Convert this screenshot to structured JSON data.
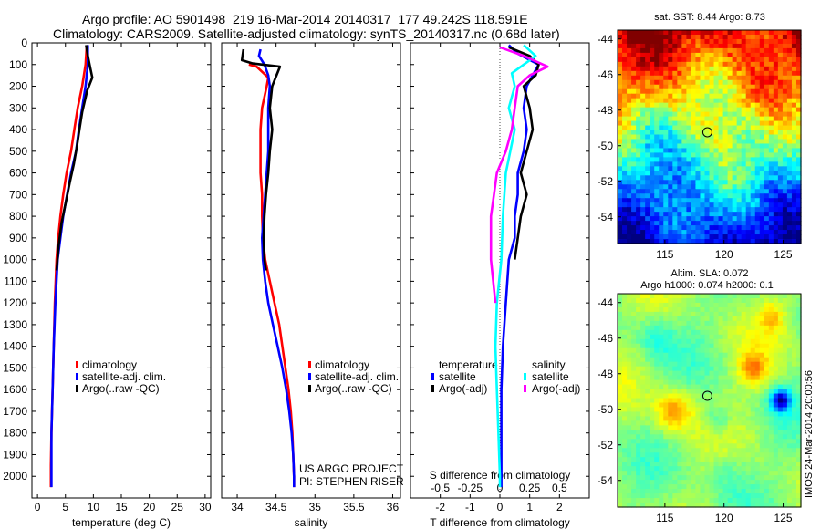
{
  "header": {
    "line1": "Argo profile: AO 5901498_219 16-Mar-2014 20140317_177 49.242S 118.591E",
    "line2": "Climatology: CARS2009. Satellite-adjusted climatology: synTS_20140317.nc (0.68d later)"
  },
  "colors": {
    "climatology": "#ff0000",
    "satellite": "#0000ff",
    "argo": "#000000",
    "satellite_salinity": "#00ffff",
    "argo_salinity": "#ff00ff"
  },
  "chart_data": [
    {
      "type": "line",
      "xlabel": "temperature (deg C)",
      "xlim": [
        -1,
        31
      ],
      "ylim": [
        2100,
        0
      ],
      "y_ticks": [
        0,
        100,
        200,
        300,
        400,
        500,
        600,
        700,
        800,
        900,
        1000,
        1100,
        1200,
        1300,
        1400,
        1500,
        1600,
        1700,
        1800,
        1900,
        2000
      ],
      "x_ticks": [
        "0",
        "5",
        "10",
        "15",
        "20",
        "25",
        "30"
      ],
      "x_tick_values": [
        0,
        5,
        10,
        15,
        20,
        25,
        30
      ],
      "legend": [
        "climatology",
        "satellite-adj. clim.",
        "Argo(..raw -QC)"
      ],
      "series": [
        {
          "name": "climatology",
          "color": "#ff0000",
          "points": [
            [
              8.8,
              20
            ],
            [
              8.6,
              100
            ],
            [
              8.0,
              200
            ],
            [
              7.2,
              300
            ],
            [
              6.6,
              400
            ],
            [
              6.0,
              500
            ],
            [
              5.2,
              600
            ],
            [
              4.6,
              700
            ],
            [
              4.1,
              800
            ],
            [
              3.7,
              900
            ],
            [
              3.4,
              1000
            ],
            [
              3.1,
              1200
            ],
            [
              2.9,
              1400
            ],
            [
              2.7,
              1600
            ],
            [
              2.5,
              1800
            ],
            [
              2.4,
              1950
            ],
            [
              2.4,
              2050
            ]
          ]
        },
        {
          "name": "satellite-adj. clim.",
          "color": "#0000ff",
          "points": [
            [
              9.0,
              10
            ],
            [
              9.0,
              100
            ],
            [
              8.6,
              200
            ],
            [
              8.0,
              300
            ],
            [
              7.4,
              400
            ],
            [
              6.9,
              500
            ],
            [
              6.0,
              600
            ],
            [
              5.3,
              700
            ],
            [
              4.6,
              800
            ],
            [
              4.1,
              900
            ],
            [
              3.6,
              1000
            ],
            [
              3.2,
              1200
            ],
            [
              2.9,
              1400
            ],
            [
              2.7,
              1600
            ],
            [
              2.5,
              1800
            ],
            [
              2.5,
              1950
            ],
            [
              2.5,
              2050
            ]
          ]
        },
        {
          "name": "Argo(..raw -QC)",
          "color": "#000000",
          "points": [
            [
              8.7,
              10
            ],
            [
              9.0,
              60
            ],
            [
              9.4,
              110
            ],
            [
              9.8,
              160
            ],
            [
              8.9,
              220
            ],
            [
              8.0,
              320
            ],
            [
              7.5,
              400
            ],
            [
              7.1,
              470
            ],
            [
              6.5,
              560
            ],
            [
              5.8,
              640
            ],
            [
              5.1,
              730
            ],
            [
              4.3,
              830
            ],
            [
              3.8,
              930
            ],
            [
              3.4,
              1050
            ]
          ]
        }
      ]
    },
    {
      "type": "line",
      "xlabel": "salinity",
      "xlim": [
        33.8,
        36.1
      ],
      "ylim": [
        2100,
        0
      ],
      "x_ticks": [
        "34",
        "34.5",
        "35",
        "35.5",
        "36"
      ],
      "x_tick_values": [
        34,
        34.5,
        35,
        35.5,
        36
      ],
      "legend": [
        "climatology",
        "satellite-adj. clim.",
        "Argo(..raw -QC)"
      ],
      "annotation": [
        "US ARGO PROJECT",
        "PI: STEPHEN RISER"
      ],
      "series": [
        {
          "name": "climatology",
          "color": "#ff0000",
          "points": [
            [
              34.15,
              100
            ],
            [
              34.25,
              110
            ],
            [
              34.4,
              160
            ],
            [
              34.38,
              200
            ],
            [
              34.32,
              300
            ],
            [
              34.3,
              400
            ],
            [
              34.3,
              500
            ],
            [
              34.3,
              600
            ],
            [
              34.32,
              700
            ],
            [
              34.32,
              800
            ],
            [
              34.33,
              900
            ],
            [
              34.36,
              1000
            ],
            [
              34.42,
              1100
            ],
            [
              34.48,
              1200
            ],
            [
              34.54,
              1300
            ],
            [
              34.58,
              1400
            ],
            [
              34.62,
              1500
            ],
            [
              34.66,
              1600
            ],
            [
              34.69,
              1700
            ],
            [
              34.71,
              1800
            ],
            [
              34.72,
              1900
            ],
            [
              34.73,
              2000
            ],
            [
              34.73,
              2050
            ]
          ]
        },
        {
          "name": "satellite-adj. clim.",
          "color": "#0000ff",
          "points": [
            [
              34.3,
              30
            ],
            [
              34.28,
              60
            ],
            [
              34.35,
              100
            ],
            [
              34.4,
              150
            ],
            [
              34.42,
              200
            ],
            [
              34.4,
              300
            ],
            [
              34.4,
              400
            ],
            [
              34.4,
              500
            ],
            [
              34.38,
              600
            ],
            [
              34.36,
              700
            ],
            [
              34.34,
              800
            ],
            [
              34.32,
              900
            ],
            [
              34.33,
              1000
            ],
            [
              34.36,
              1100
            ],
            [
              34.4,
              1200
            ],
            [
              34.46,
              1300
            ],
            [
              34.52,
              1400
            ],
            [
              34.58,
              1500
            ],
            [
              34.63,
              1600
            ],
            [
              34.67,
              1700
            ],
            [
              34.7,
              1800
            ],
            [
              34.72,
              1900
            ],
            [
              34.73,
              2000
            ],
            [
              34.73,
              2050
            ]
          ]
        },
        {
          "name": "Argo(..raw -QC)",
          "color": "#000000",
          "points": [
            [
              34.08,
              30
            ],
            [
              34.06,
              80
            ],
            [
              34.2,
              95
            ],
            [
              34.55,
              110
            ],
            [
              34.45,
              200
            ],
            [
              34.42,
              300
            ],
            [
              34.45,
              400
            ],
            [
              34.42,
              500
            ],
            [
              34.4,
              600
            ],
            [
              34.37,
              700
            ],
            [
              34.35,
              800
            ],
            [
              34.34,
              900
            ],
            [
              34.35,
              1000
            ],
            [
              34.37,
              1050
            ]
          ]
        }
      ]
    },
    {
      "type": "line",
      "xlabel": "T difference from climatology",
      "xlabel2": "S difference from climatology",
      "xlim": [
        -3,
        3
      ],
      "ylim": [
        2100,
        0
      ],
      "x_ticks": [
        "-2",
        "-1",
        "0",
        "1",
        "2"
      ],
      "x_tick_values": [
        -2,
        -1,
        0,
        1,
        2
      ],
      "x2_ticks": [
        "-0.5",
        "-0.25",
        "0",
        "0.25",
        "0.5"
      ],
      "legend_titles": [
        "temperature",
        "salinity"
      ],
      "legend": [
        "satellite",
        "Argo(-adj)",
        "satellite",
        "Argo(-adj)"
      ],
      "series": [
        {
          "name": "satellite",
          "color": "#0000ff",
          "points": [
            [
              0.3,
              10
            ],
            [
              0.6,
              50
            ],
            [
              1.3,
              100
            ],
            [
              0.9,
              200
            ],
            [
              0.8,
              300
            ],
            [
              0.9,
              400
            ],
            [
              0.8,
              500
            ],
            [
              0.6,
              600
            ],
            [
              0.6,
              700
            ],
            [
              0.5,
              800
            ],
            [
              0.5,
              900
            ],
            [
              0.3,
              1000
            ],
            [
              0.2,
              1200
            ],
            [
              0.1,
              1400
            ],
            [
              0.05,
              1600
            ],
            [
              0.05,
              1800
            ],
            [
              0.05,
              2000
            ],
            [
              0.05,
              2050
            ]
          ]
        },
        {
          "name": "Argo(-adj)",
          "color": "#000000",
          "points": [
            [
              0.3,
              20
            ],
            [
              1.0,
              60
            ],
            [
              1.3,
              100
            ],
            [
              1.2,
              150
            ],
            [
              0.8,
              200
            ],
            [
              1.0,
              300
            ],
            [
              1.1,
              400
            ],
            [
              0.9,
              500
            ],
            [
              0.7,
              600
            ],
            [
              0.9,
              700
            ],
            [
              0.7,
              800
            ],
            [
              0.6,
              900
            ],
            [
              0.5,
              1000
            ]
          ]
        },
        {
          "name": "satellite",
          "color": "#00ffff",
          "points": [
            [
              0.8,
              10
            ],
            [
              1.2,
              60
            ],
            [
              0.4,
              140
            ],
            [
              0.5,
              200
            ],
            [
              0.3,
              300
            ],
            [
              0.5,
              400
            ],
            [
              0.2,
              600
            ],
            [
              0.1,
              800
            ],
            [
              0.05,
              1000
            ],
            [
              -0.1,
              1200
            ],
            [
              -0.15,
              1400
            ],
            [
              -0.1,
              1600
            ],
            [
              -0.05,
              1800
            ],
            [
              0.0,
              2000
            ],
            [
              0.0,
              2050
            ]
          ]
        },
        {
          "name": "Argo(-adj)",
          "color": "#ff00ff",
          "points": [
            [
              0,
              20
            ],
            [
              0.8,
              60
            ],
            [
              1.6,
              110
            ],
            [
              1.0,
              150
            ],
            [
              0.6,
              200
            ],
            [
              0.5,
              300
            ],
            [
              0.4,
              400
            ],
            [
              0.2,
              500
            ],
            [
              -0.1,
              600
            ],
            [
              -0.2,
              700
            ],
            [
              -0.3,
              800
            ],
            [
              -0.3,
              1000
            ],
            [
              -0.15,
              1200
            ]
          ]
        }
      ]
    },
    {
      "type": "heatmap",
      "title": "sat. SST: 8.44  Argo: 8.73",
      "x_ticks": [
        "115",
        "120",
        "125"
      ],
      "x_tick_values": [
        115,
        120,
        125
      ],
      "y_ticks": [
        "-44",
        "-46",
        "-48",
        "-50",
        "-52",
        "-54"
      ],
      "y_tick_values": [
        -44,
        -46,
        -48,
        -50,
        -52,
        -54
      ],
      "xlim": [
        111,
        126.5
      ],
      "ylim": [
        -55.5,
        -43.5
      ],
      "marker": {
        "lon": 118.591,
        "lat": -49.242
      }
    },
    {
      "type": "heatmap",
      "title": "Altim. SLA: 0.072",
      "subtitle": "Argo h1000: 0.074  h2000: 0.1",
      "x_ticks": [
        "115",
        "120",
        "125"
      ],
      "x_tick_values": [
        115,
        120,
        125
      ],
      "y_ticks": [
        "-44",
        "-46",
        "-48",
        "-50",
        "-52",
        "-54"
      ],
      "y_tick_values": [
        -44,
        -46,
        -48,
        -50,
        -52,
        -54
      ],
      "xlim": [
        111,
        126.5
      ],
      "ylim": [
        -55.5,
        -43.5
      ],
      "marker": {
        "lon": 118.591,
        "lat": -49.242
      }
    }
  ],
  "credit": "IMOS 24-Mar-2014 20:00:56"
}
